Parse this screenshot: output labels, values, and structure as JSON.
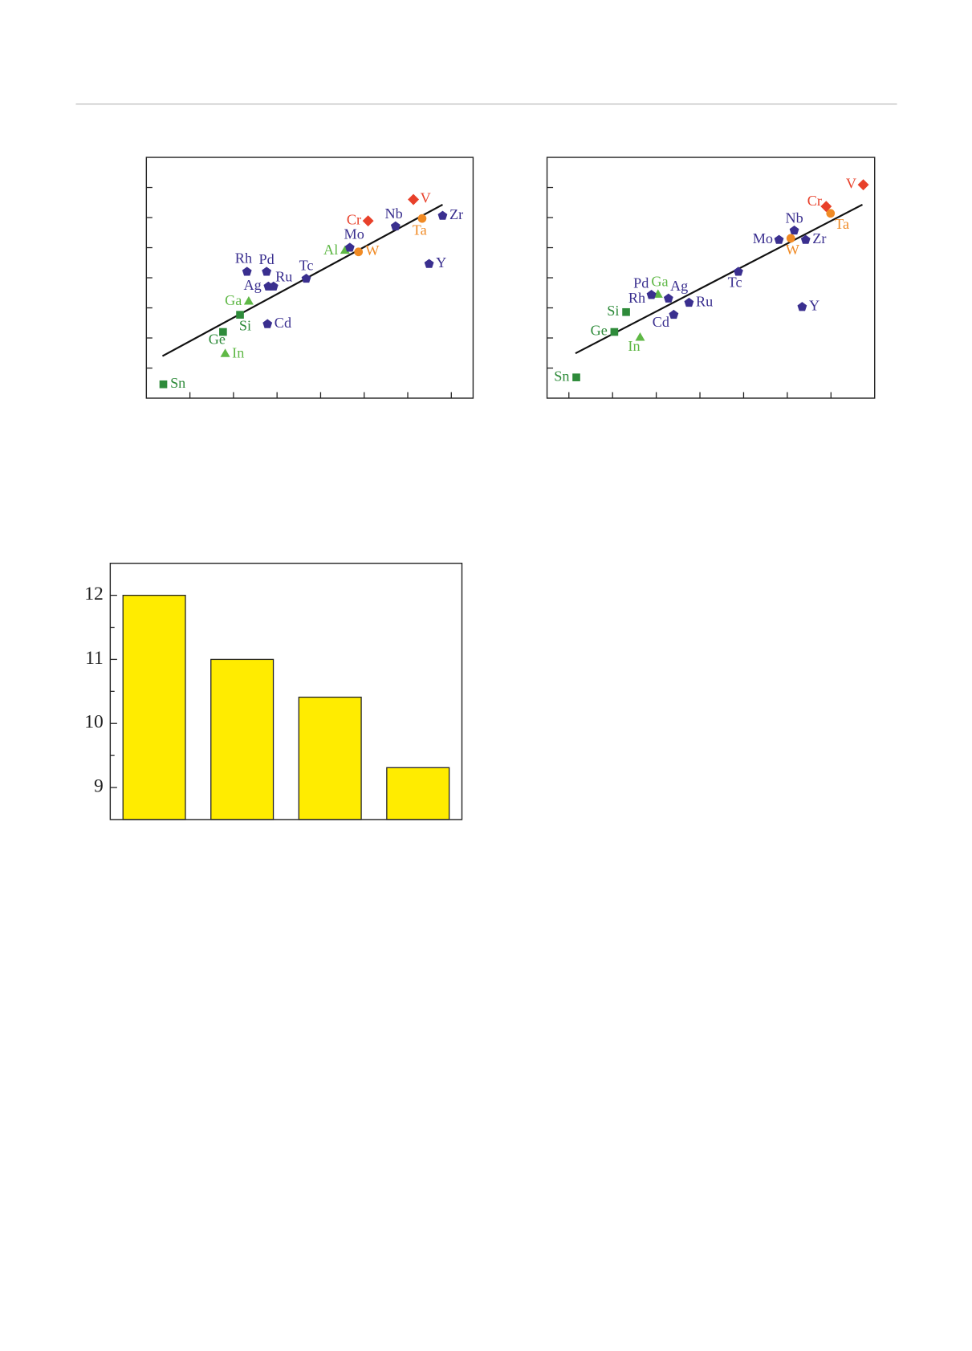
{
  "chart_data": [
    {
      "type": "scatter",
      "xlim": [
        0,
        7.5
      ],
      "ylim": [
        0,
        8
      ],
      "xticks": [
        1,
        2,
        3,
        4,
        5,
        6,
        7
      ],
      "yticks": [
        1,
        2,
        3,
        4,
        5,
        6,
        7
      ],
      "fit_line": {
        "x": [
          0.37,
          6.8
        ],
        "y": [
          1.4,
          6.43
        ]
      },
      "series": [
        {
          "color": "#2e8b3a",
          "marker": "square",
          "labels": [
            "Sn",
            "Ge",
            "Si"
          ],
          "x": [
            0.39,
            1.76,
            2.15
          ],
          "values": [
            0.46,
            2.2,
            2.77
          ]
        },
        {
          "color": "#5fb846",
          "marker": "triangle",
          "labels": [
            "In",
            "Ga",
            "Al"
          ],
          "x": [
            1.81,
            2.35,
            4.56
          ],
          "values": [
            1.46,
            3.2,
            4.89
          ]
        },
        {
          "color": "#3a2f8f",
          "marker": "pentagon",
          "labels": [
            "Rh",
            "Pd",
            "Ag",
            "Ru",
            "Cd",
            "Tc",
            "Mo",
            "Nb",
            "Zr",
            "Y"
          ],
          "x": [
            2.31,
            2.76,
            2.8,
            2.92,
            2.78,
            3.67,
            4.67,
            5.72,
            6.8,
            6.49
          ],
          "values": [
            4.2,
            4.2,
            3.71,
            3.71,
            2.46,
            3.97,
            5.0,
            5.71,
            6.06,
            4.46
          ]
        },
        {
          "color": "#f08a24",
          "marker": "circle",
          "labels": [
            "W",
            "Ta"
          ],
          "x": [
            4.87,
            6.33
          ],
          "values": [
            4.86,
            5.97
          ]
        },
        {
          "color": "#e8402a",
          "marker": "diamond",
          "labels": [
            "Cr",
            "V"
          ],
          "x": [
            5.09,
            6.13
          ],
          "values": [
            5.89,
            6.6
          ]
        }
      ]
    },
    {
      "type": "scatter",
      "xlim": [
        0,
        7.5
      ],
      "ylim": [
        0,
        8
      ],
      "xticks": [
        0.5,
        1.5,
        2.5,
        3.5,
        4.5,
        5.5,
        6.5
      ],
      "yticks": [
        1,
        2,
        3,
        4,
        5,
        6,
        7
      ],
      "fit_line": {
        "x": [
          0.65,
          7.22
        ],
        "y": [
          1.49,
          6.43
        ]
      },
      "series": [
        {
          "color": "#2e8b3a",
          "marker": "square",
          "labels": [
            "Sn",
            "Ge",
            "Si"
          ],
          "x": [
            0.67,
            1.54,
            1.81
          ],
          "values": [
            0.69,
            2.2,
            2.86
          ]
        },
        {
          "color": "#5fb846",
          "marker": "triangle",
          "labels": [
            "In",
            "Ga"
          ],
          "x": [
            2.13,
            2.54
          ],
          "values": [
            2.0,
            3.43
          ]
        },
        {
          "color": "#3a2f8f",
          "marker": "pentagon",
          "labels": [
            "Rh",
            "Pd",
            "Ag",
            "Cd",
            "Ru",
            "Tc",
            "Mo",
            "Nb",
            "Zr",
            "Y"
          ],
          "x": [
            2.39,
            2.39,
            2.78,
            2.9,
            3.25,
            4.38,
            5.31,
            5.66,
            5.92,
            5.84
          ],
          "values": [
            3.43,
            3.43,
            3.31,
            2.77,
            3.17,
            4.2,
            5.26,
            5.57,
            5.26,
            3.03
          ]
        },
        {
          "color": "#f08a24",
          "marker": "circle",
          "labels": [
            "W",
            "Ta"
          ],
          "x": [
            5.58,
            6.49
          ],
          "values": [
            5.31,
            6.14
          ]
        },
        {
          "color": "#e8402a",
          "marker": "diamond",
          "labels": [
            "Cr",
            "V"
          ],
          "x": [
            6.39,
            7.24
          ],
          "values": [
            6.37,
            7.09
          ]
        }
      ]
    },
    {
      "type": "bar",
      "values": [
        12.0,
        11.0,
        10.41,
        9.31
      ],
      "color": "#ffec00",
      "ylim": [
        8.5,
        12.5
      ],
      "yticks": [
        9,
        10,
        11,
        12
      ]
    }
  ]
}
